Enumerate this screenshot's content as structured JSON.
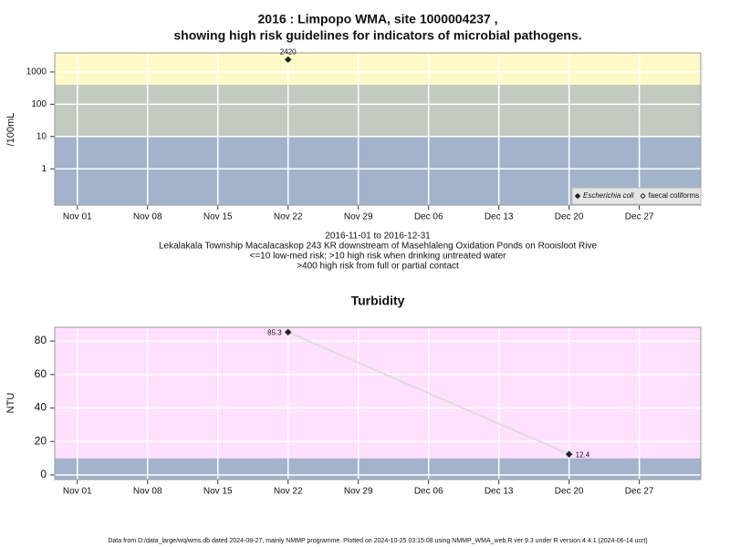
{
  "chart_data": [
    {
      "type": "scatter",
      "title": "2016 : Limpopo WMA, site 1000004237 ,",
      "subtitle": "showing high risk guidelines for indicators of microbial pathogens.",
      "ylabel": "/100mL",
      "log_y": true,
      "ylim": [
        0.075,
        3900
      ],
      "yticks": [
        1,
        10,
        100,
        1000
      ],
      "xlim": [
        "2016-10-29T18:00",
        "2017-01-02T03:00"
      ],
      "xticks": [
        {
          "value": "2016-11-01",
          "label": "Nov 01"
        },
        {
          "value": "2016-11-08",
          "label": "Nov 08"
        },
        {
          "value": "2016-11-15",
          "label": "Nov 15"
        },
        {
          "value": "2016-11-22",
          "label": "Nov 22"
        },
        {
          "value": "2016-11-29",
          "label": "Nov 29"
        },
        {
          "value": "2016-12-06",
          "label": "Dec 06"
        },
        {
          "value": "2016-12-13",
          "label": "Dec 13"
        },
        {
          "value": "2016-12-20",
          "label": "Dec 20"
        },
        {
          "value": "2016-12-27",
          "label": "Dec 27"
        }
      ],
      "grid": true,
      "thresholds": [
        10,
        400
      ],
      "band_colors": [
        "#a3b3cc",
        "#c3cbc0",
        "#fff9c8"
      ],
      "series": [
        {
          "name": "Escherichia coli",
          "marker": "filled",
          "color": "#222222",
          "x": [
            "2016-11-22"
          ],
          "values": [
            2420
          ]
        },
        {
          "name": "faecal coliforms",
          "marker": "open",
          "color": "#222222",
          "x": [],
          "values": []
        }
      ],
      "legend": "bottom-right",
      "notes": [
        "2016-11-01 to 2016-12-31",
        "Lekalakala Township Macalacaskop 243 KR downstream of Masehlaleng Oxidation Ponds on Rooisloot Rive",
        "<=10 low-med risk; >10 high risk when drinking untreated water",
        ">400 high risk from full or partial contact"
      ]
    },
    {
      "type": "line",
      "title": "Turbidity",
      "ylabel": "NTU",
      "log_y": false,
      "ylim": [
        -2.7,
        88.2
      ],
      "yticks": [
        0,
        20,
        40,
        60,
        80
      ],
      "xlim": [
        "2016-10-29T18:00",
        "2017-01-02T03:00"
      ],
      "xticks": [
        {
          "value": "2016-11-01",
          "label": "Nov 01"
        },
        {
          "value": "2016-11-08",
          "label": "Nov 08"
        },
        {
          "value": "2016-11-15",
          "label": "Nov 15"
        },
        {
          "value": "2016-11-22",
          "label": "Nov 22"
        },
        {
          "value": "2016-11-29",
          "label": "Nov 29"
        },
        {
          "value": "2016-12-06",
          "label": "Dec 06"
        },
        {
          "value": "2016-12-13",
          "label": "Dec 13"
        },
        {
          "value": "2016-12-20",
          "label": "Dec 20"
        },
        {
          "value": "2016-12-27",
          "label": "Dec 27"
        }
      ],
      "grid": true,
      "thresholds": [
        10
      ],
      "band_colors": [
        "#a3b3cc",
        "#ffe0ff"
      ],
      "series": [
        {
          "color": "#222222",
          "line_color": "#dddddd",
          "x": [
            "2016-11-22",
            "2016-12-20"
          ],
          "values": [
            85.3,
            12.4
          ]
        }
      ]
    }
  ],
  "footer": "Data from D:/data_large/wq/wms.db dated 2024-08-27, mainly NMMP programme. Plotted on 2024-10-25 03:15:08 using NMMP_WMA_web.R ver 9.3 under R version 4.4.1 (2024-06-14 ucrt)"
}
